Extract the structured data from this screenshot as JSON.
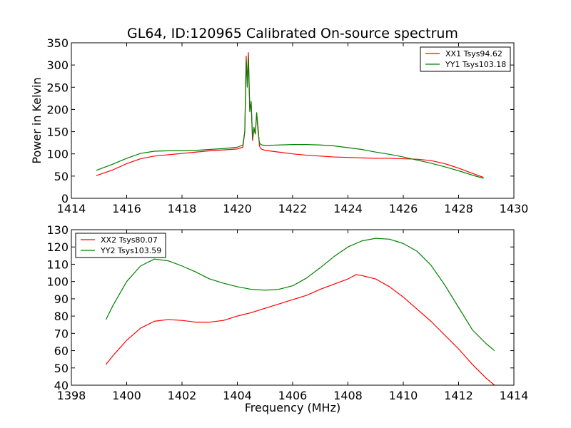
{
  "title": "GL64, ID:120965 Calibrated On-source spectrum",
  "colors": {
    "red": "#ff0000",
    "green": "#008000"
  },
  "chart_data": [
    {
      "type": "line",
      "xlabel": "",
      "ylabel": "Power in Kelvin",
      "xlim": [
        1414,
        1430
      ],
      "ylim": [
        0,
        350
      ],
      "xticks": [
        1414,
        1416,
        1418,
        1420,
        1422,
        1424,
        1426,
        1428,
        1430
      ],
      "yticks": [
        0,
        50,
        100,
        150,
        200,
        250,
        300,
        350
      ],
      "legend_position": "upper-right",
      "series": [
        {
          "name": "XX1 Tsys94.62",
          "color": "#ff0000",
          "x": [
            1414.9,
            1415.5,
            1416.0,
            1416.5,
            1417.0,
            1417.5,
            1418.0,
            1418.5,
            1419.0,
            1419.5,
            1420.0,
            1420.2,
            1420.27,
            1420.32,
            1420.36,
            1420.4,
            1420.45,
            1420.5,
            1420.55,
            1420.6,
            1420.65,
            1420.7,
            1420.75,
            1420.8,
            1420.85,
            1420.9,
            1421.0,
            1421.5,
            1422.0,
            1422.5,
            1423.0,
            1423.5,
            1424.0,
            1424.5,
            1425.0,
            1425.5,
            1426.0,
            1426.5,
            1427.0,
            1427.5,
            1428.0,
            1428.5,
            1428.9
          ],
          "values": [
            51,
            64,
            78,
            89,
            95,
            98,
            101,
            104,
            107,
            109,
            111,
            115,
            150,
            320,
            260,
            328,
            200,
            215,
            130,
            155,
            145,
            190,
            160,
            118,
            112,
            110,
            108,
            104,
            100,
            97,
            95,
            93,
            92,
            91,
            90,
            90,
            89,
            88,
            85,
            78,
            68,
            56,
            47
          ]
        },
        {
          "name": "YY1 Tsys103.18",
          "color": "#008000",
          "x": [
            1414.9,
            1415.5,
            1416.0,
            1416.5,
            1417.0,
            1417.5,
            1418.0,
            1418.5,
            1419.0,
            1419.5,
            1420.0,
            1420.2,
            1420.27,
            1420.32,
            1420.36,
            1420.4,
            1420.45,
            1420.5,
            1420.55,
            1420.6,
            1420.65,
            1420.7,
            1420.75,
            1420.8,
            1420.85,
            1420.9,
            1421.0,
            1421.5,
            1422.0,
            1422.5,
            1423.0,
            1423.5,
            1424.0,
            1424.5,
            1425.0,
            1425.5,
            1426.0,
            1426.5,
            1427.0,
            1427.5,
            1428.0,
            1428.5,
            1428.9
          ],
          "values": [
            63,
            77,
            90,
            101,
            106,
            107,
            107,
            108,
            110,
            112,
            115,
            120,
            150,
            310,
            250,
            318,
            195,
            218,
            135,
            160,
            145,
            193,
            150,
            125,
            121,
            120,
            119,
            120,
            121,
            121,
            120,
            118,
            114,
            110,
            104,
            99,
            93,
            86,
            79,
            71,
            62,
            52,
            45
          ]
        }
      ]
    },
    {
      "type": "line",
      "xlabel": "Frequency (MHz)",
      "ylabel": "",
      "xlim": [
        1398,
        1414
      ],
      "ylim": [
        40,
        130
      ],
      "xticks": [
        1398,
        1400,
        1402,
        1404,
        1406,
        1408,
        1410,
        1412,
        1414
      ],
      "yticks": [
        40,
        50,
        60,
        70,
        80,
        90,
        100,
        110,
        120,
        130
      ],
      "legend_position": "upper-left",
      "series": [
        {
          "name": "XX2 Tsys80.07",
          "color": "#ff0000",
          "x": [
            1399.25,
            1399.5,
            1400.0,
            1400.5,
            1401.0,
            1401.5,
            1402.0,
            1402.5,
            1403.0,
            1403.5,
            1404.0,
            1404.5,
            1405.0,
            1405.5,
            1406.0,
            1406.5,
            1407.0,
            1407.5,
            1408.0,
            1408.3,
            1408.5,
            1409.0,
            1409.5,
            1410.0,
            1410.5,
            1411.0,
            1411.5,
            1412.0,
            1412.5,
            1413.0,
            1413.3
          ],
          "values": [
            52,
            57,
            66,
            73,
            77,
            78,
            77.5,
            76.5,
            76.5,
            77.5,
            80,
            82,
            84.5,
            87,
            89.5,
            92,
            95.5,
            98.5,
            101.5,
            104,
            103.5,
            101.5,
            97,
            91,
            84,
            77,
            69,
            61,
            52,
            44,
            40
          ]
        },
        {
          "name": "YY2 Tsys103.59",
          "color": "#008000",
          "x": [
            1399.25,
            1399.5,
            1400.0,
            1400.5,
            1401.0,
            1401.5,
            1402.0,
            1402.5,
            1403.0,
            1403.5,
            1404.0,
            1404.5,
            1405.0,
            1405.5,
            1406.0,
            1406.5,
            1407.0,
            1407.5,
            1408.0,
            1408.5,
            1409.0,
            1409.5,
            1410.0,
            1410.5,
            1411.0,
            1411.5,
            1412.0,
            1412.5,
            1413.0,
            1413.3
          ],
          "values": [
            78,
            86,
            100,
            109,
            113,
            112,
            109,
            105.5,
            101.5,
            99,
            97,
            95.5,
            95,
            95.5,
            97.5,
            102,
            108,
            114.5,
            120,
            123.5,
            125,
            124.5,
            122,
            117.5,
            109.5,
            98,
            85,
            72,
            64,
            60
          ]
        }
      ]
    }
  ]
}
